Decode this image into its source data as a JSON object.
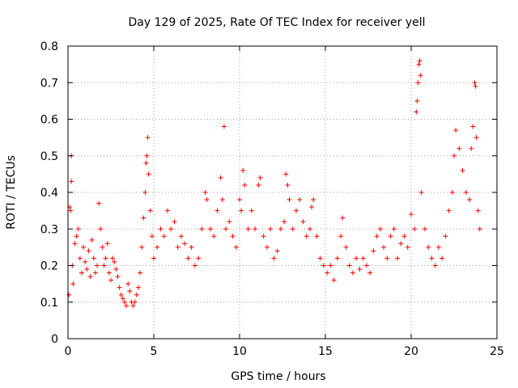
{
  "chart_data": {
    "type": "scatter",
    "title": "Day 129 of 2025, Rate Of TEC Index for receiver yell",
    "xlabel": "GPS time / hours",
    "ylabel": "ROTI / TECUs",
    "xlim": [
      0,
      25
    ],
    "ylim": [
      0,
      0.8
    ],
    "xticks": [
      0,
      5,
      10,
      15,
      20,
      25
    ],
    "xtick_labels": [
      "0",
      "5",
      "10",
      "15",
      "20",
      "25"
    ],
    "yticks": [
      0,
      0.1,
      0.2,
      0.3,
      0.4,
      0.5,
      0.6,
      0.7,
      0.8
    ],
    "ytick_labels": [
      "0",
      "0.1",
      "0.2",
      "0.3",
      "0.4",
      "0.5",
      "0.6",
      "0.7",
      "0.8"
    ],
    "grid": true,
    "marker": "plus",
    "color": "#ff0000",
    "series": [
      {
        "name": "ROTI",
        "points": [
          [
            0.05,
            0.12
          ],
          [
            0.1,
            0.36
          ],
          [
            0.15,
            0.35
          ],
          [
            0.2,
            0.5
          ],
          [
            0.2,
            0.43
          ],
          [
            0.25,
            0.2
          ],
          [
            0.3,
            0.15
          ],
          [
            0.4,
            0.26
          ],
          [
            0.5,
            0.28
          ],
          [
            0.6,
            0.3
          ],
          [
            0.7,
            0.22
          ],
          [
            0.8,
            0.18
          ],
          [
            0.9,
            0.25
          ],
          [
            1.0,
            0.21
          ],
          [
            1.1,
            0.19
          ],
          [
            1.2,
            0.24
          ],
          [
            1.3,
            0.17
          ],
          [
            1.4,
            0.27
          ],
          [
            1.5,
            0.22
          ],
          [
            1.6,
            0.18
          ],
          [
            1.7,
            0.2
          ],
          [
            1.8,
            0.37
          ],
          [
            1.9,
            0.3
          ],
          [
            2.0,
            0.25
          ],
          [
            2.1,
            0.2
          ],
          [
            2.2,
            0.22
          ],
          [
            2.3,
            0.26
          ],
          [
            2.4,
            0.18
          ],
          [
            2.5,
            0.16
          ],
          [
            2.6,
            0.22
          ],
          [
            2.7,
            0.21
          ],
          [
            2.8,
            0.19
          ],
          [
            2.9,
            0.17
          ],
          [
            3.0,
            0.14
          ],
          [
            3.1,
            0.12
          ],
          [
            3.2,
            0.11
          ],
          [
            3.3,
            0.1
          ],
          [
            3.4,
            0.09
          ],
          [
            3.5,
            0.15
          ],
          [
            3.6,
            0.13
          ],
          [
            3.7,
            0.1
          ],
          [
            3.8,
            0.09
          ],
          [
            3.9,
            0.1
          ],
          [
            4.0,
            0.12
          ],
          [
            4.1,
            0.14
          ],
          [
            4.2,
            0.18
          ],
          [
            4.3,
            0.25
          ],
          [
            4.4,
            0.33
          ],
          [
            4.5,
            0.4
          ],
          [
            4.55,
            0.48
          ],
          [
            4.6,
            0.5
          ],
          [
            4.65,
            0.55
          ],
          [
            4.7,
            0.45
          ],
          [
            4.8,
            0.35
          ],
          [
            4.9,
            0.28
          ],
          [
            5.0,
            0.22
          ],
          [
            5.2,
            0.25
          ],
          [
            5.4,
            0.3
          ],
          [
            5.6,
            0.28
          ],
          [
            5.8,
            0.35
          ],
          [
            6.0,
            0.3
          ],
          [
            6.2,
            0.32
          ],
          [
            6.4,
            0.25
          ],
          [
            6.6,
            0.28
          ],
          [
            6.8,
            0.26
          ],
          [
            7.0,
            0.22
          ],
          [
            7.2,
            0.25
          ],
          [
            7.4,
            0.2
          ],
          [
            7.6,
            0.22
          ],
          [
            7.8,
            0.3
          ],
          [
            8.0,
            0.4
          ],
          [
            8.1,
            0.38
          ],
          [
            8.3,
            0.3
          ],
          [
            8.5,
            0.28
          ],
          [
            8.7,
            0.35
          ],
          [
            8.9,
            0.44
          ],
          [
            9.0,
            0.38
          ],
          [
            9.1,
            0.58
          ],
          [
            9.2,
            0.3
          ],
          [
            9.4,
            0.32
          ],
          [
            9.6,
            0.28
          ],
          [
            9.8,
            0.25
          ],
          [
            10.0,
            0.38
          ],
          [
            10.1,
            0.35
          ],
          [
            10.2,
            0.46
          ],
          [
            10.3,
            0.42
          ],
          [
            10.5,
            0.3
          ],
          [
            10.7,
            0.35
          ],
          [
            10.9,
            0.3
          ],
          [
            11.1,
            0.42
          ],
          [
            11.2,
            0.44
          ],
          [
            11.4,
            0.28
          ],
          [
            11.6,
            0.25
          ],
          [
            11.8,
            0.3
          ],
          [
            12.0,
            0.22
          ],
          [
            12.2,
            0.24
          ],
          [
            12.4,
            0.3
          ],
          [
            12.6,
            0.32
          ],
          [
            12.7,
            0.45
          ],
          [
            12.8,
            0.42
          ],
          [
            12.9,
            0.38
          ],
          [
            13.1,
            0.3
          ],
          [
            13.3,
            0.35
          ],
          [
            13.5,
            0.38
          ],
          [
            13.7,
            0.32
          ],
          [
            13.9,
            0.28
          ],
          [
            14.1,
            0.3
          ],
          [
            14.2,
            0.36
          ],
          [
            14.3,
            0.38
          ],
          [
            14.5,
            0.28
          ],
          [
            14.7,
            0.22
          ],
          [
            14.9,
            0.2
          ],
          [
            15.1,
            0.18
          ],
          [
            15.3,
            0.2
          ],
          [
            15.5,
            0.16
          ],
          [
            15.7,
            0.22
          ],
          [
            15.9,
            0.28
          ],
          [
            16.0,
            0.33
          ],
          [
            16.2,
            0.25
          ],
          [
            16.4,
            0.2
          ],
          [
            16.6,
            0.18
          ],
          [
            16.8,
            0.22
          ],
          [
            17.0,
            0.19
          ],
          [
            17.2,
            0.22
          ],
          [
            17.4,
            0.2
          ],
          [
            17.6,
            0.18
          ],
          [
            17.8,
            0.24
          ],
          [
            18.0,
            0.28
          ],
          [
            18.2,
            0.3
          ],
          [
            18.4,
            0.25
          ],
          [
            18.6,
            0.22
          ],
          [
            18.8,
            0.28
          ],
          [
            19.0,
            0.3
          ],
          [
            19.2,
            0.22
          ],
          [
            19.4,
            0.26
          ],
          [
            19.6,
            0.28
          ],
          [
            19.8,
            0.25
          ],
          [
            20.0,
            0.34
          ],
          [
            20.2,
            0.3
          ],
          [
            20.3,
            0.62
          ],
          [
            20.35,
            0.65
          ],
          [
            20.4,
            0.7
          ],
          [
            20.45,
            0.75
          ],
          [
            20.5,
            0.76
          ],
          [
            20.55,
            0.72
          ],
          [
            20.6,
            0.4
          ],
          [
            20.8,
            0.3
          ],
          [
            21.0,
            0.25
          ],
          [
            21.2,
            0.22
          ],
          [
            21.4,
            0.2
          ],
          [
            21.6,
            0.25
          ],
          [
            21.8,
            0.22
          ],
          [
            22.0,
            0.28
          ],
          [
            22.2,
            0.35
          ],
          [
            22.4,
            0.4
          ],
          [
            22.5,
            0.5
          ],
          [
            22.6,
            0.57
          ],
          [
            22.8,
            0.52
          ],
          [
            23.0,
            0.46
          ],
          [
            23.2,
            0.4
          ],
          [
            23.4,
            0.38
          ],
          [
            23.5,
            0.52
          ],
          [
            23.6,
            0.58
          ],
          [
            23.7,
            0.7
          ],
          [
            23.75,
            0.69
          ],
          [
            23.8,
            0.55
          ],
          [
            23.9,
            0.35
          ],
          [
            24.0,
            0.3
          ]
        ]
      }
    ]
  }
}
